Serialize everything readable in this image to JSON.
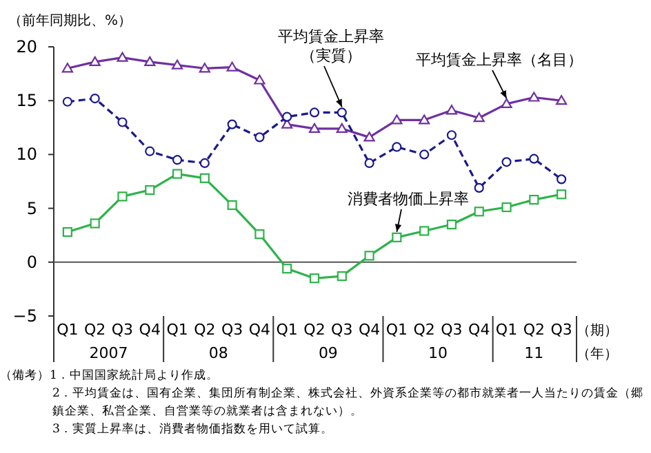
{
  "chart_data": {
    "type": "line",
    "ylabel": "（前年同期比、%）",
    "xlabel": "（期）",
    "categories": [
      "Q1",
      "Q2",
      "Q3",
      "Q4",
      "Q1",
      "Q2",
      "Q3",
      "Q4",
      "Q1",
      "Q2",
      "Q3",
      "Q4",
      "Q1",
      "Q2",
      "Q3",
      "Q4",
      "Q1",
      "Q2",
      "Q3"
    ],
    "series": [
      {
        "name": "平均賃金上昇率（名目）",
        "color": "#7030a0",
        "marker": "triangle",
        "line_style": "solid",
        "values": [
          18.0,
          18.6,
          19.0,
          18.6,
          18.3,
          18.0,
          18.1,
          16.9,
          12.8,
          12.4,
          12.4,
          11.6,
          13.2,
          13.2,
          14.1,
          13.4,
          14.7,
          15.3,
          15.0
        ]
      },
      {
        "name": "平均賃金上昇率（実質）",
        "color": "#1a1a8c",
        "marker": "circle",
        "line_style": "dashed",
        "values": [
          14.9,
          15.2,
          13.0,
          10.3,
          9.5,
          9.2,
          12.8,
          11.6,
          13.5,
          13.9,
          13.9,
          9.2,
          10.7,
          10.0,
          11.8,
          6.9,
          9.3,
          9.6,
          7.7
        ]
      },
      {
        "name": "消費者物価上昇率",
        "color": "#2db34a",
        "marker": "square",
        "line_style": "solid",
        "values": [
          2.8,
          3.6,
          6.1,
          6.7,
          8.2,
          7.8,
          5.3,
          2.6,
          -0.6,
          -1.5,
          -1.3,
          0.6,
          2.3,
          2.9,
          3.5,
          4.7,
          5.1,
          5.8,
          6.3
        ]
      }
    ],
    "ylim": [
      -5,
      20
    ],
    "yticks": [
      {
        "value": -5,
        "label": "−5"
      },
      0,
      5,
      10,
      15,
      20
    ],
    "annotations": [
      "2007",
      "08",
      "09",
      "10",
      "11",
      "（年）",
      "（備考）1．中国国家統計局より作成。",
      "2．平均賃金は、国有企業、集団所有制企業、株式会社、外資系企業等の都市就業者一人当たりの賃金（郷鎮企業、私営企業、自営業等の就業者は含まれない）。",
      "3．実質上昇率は、消費者物価指数を用いて試算。"
    ]
  }
}
